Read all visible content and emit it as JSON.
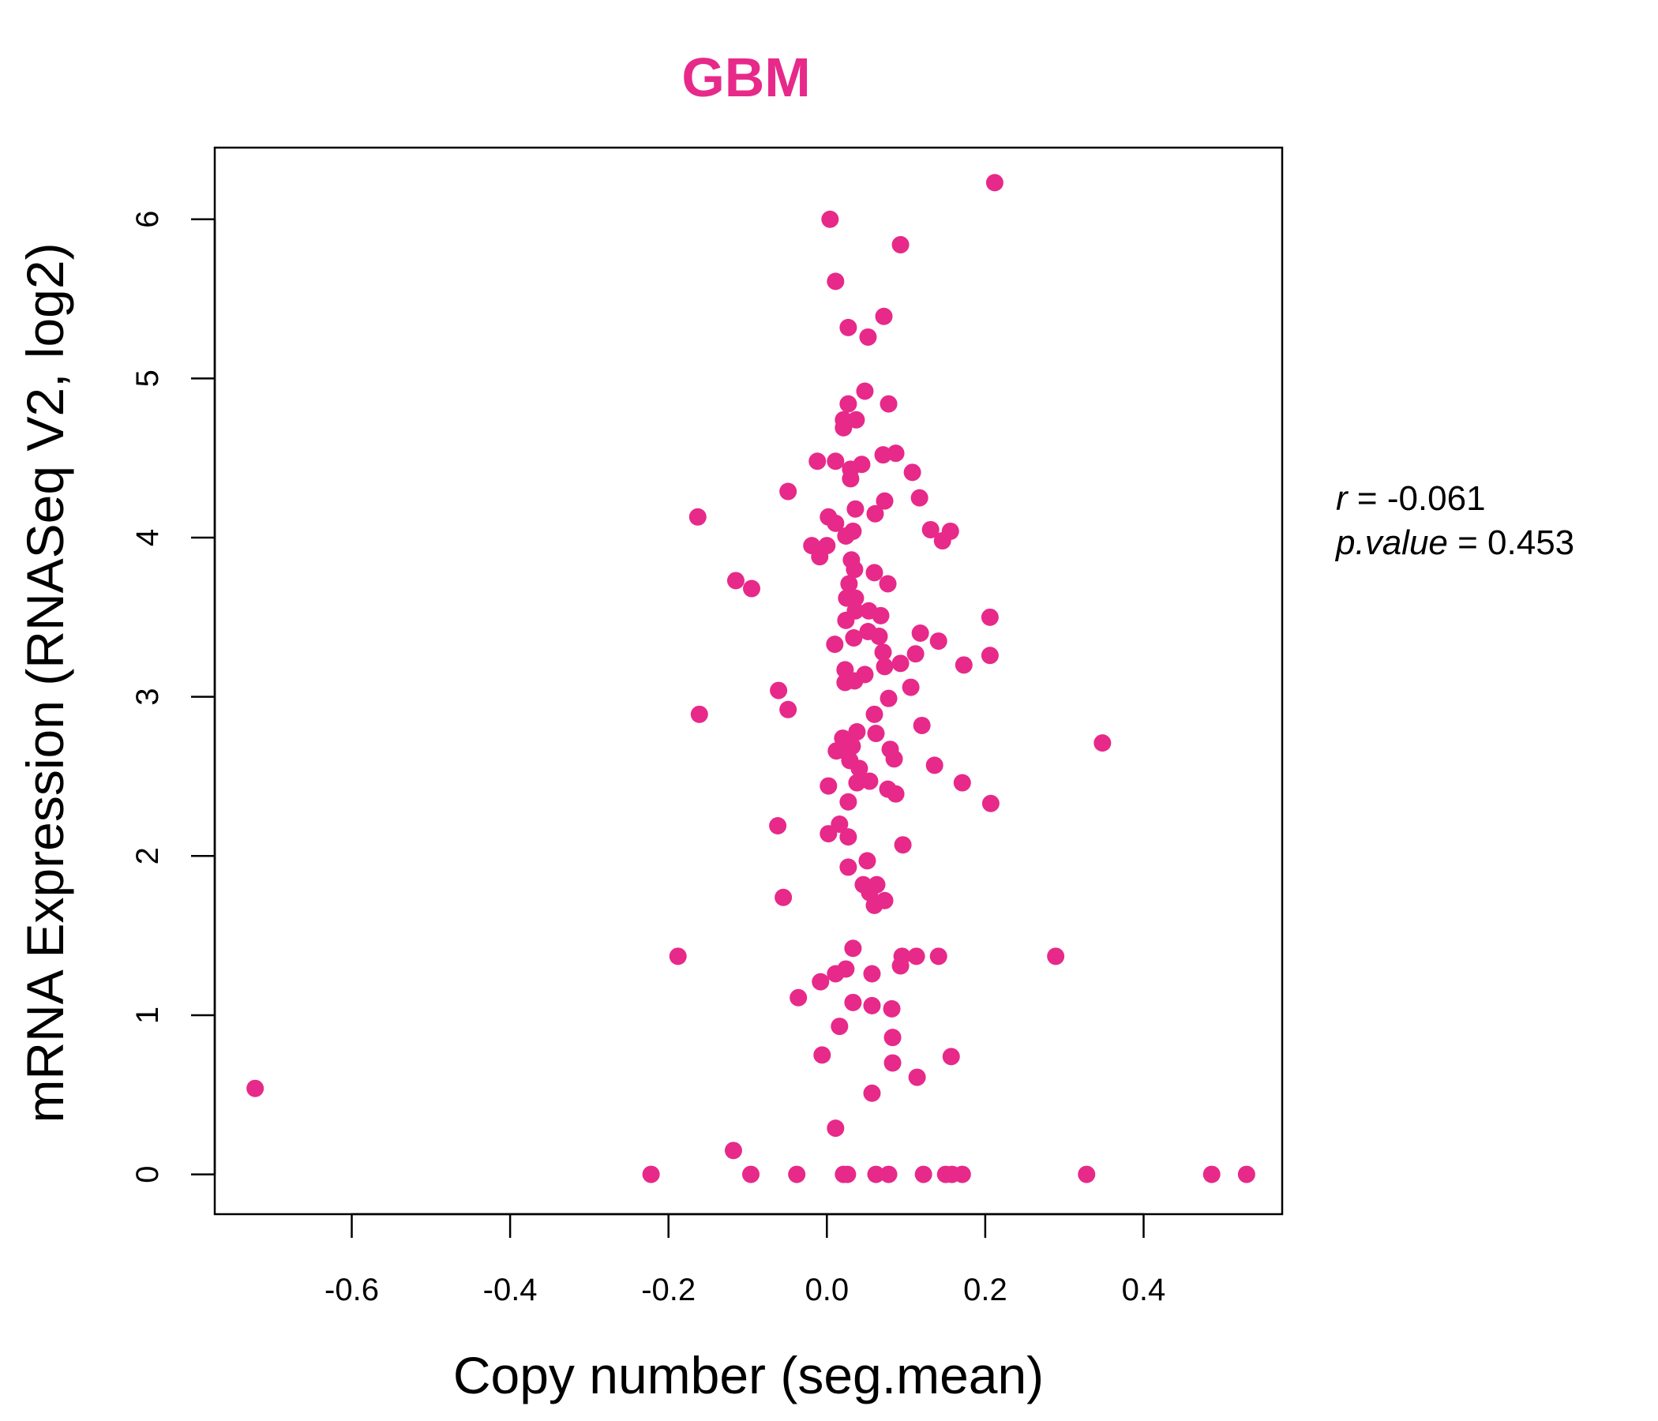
{
  "chart_data": {
    "type": "scatter",
    "title": "GBM",
    "xlabel": "Copy number (seg.mean)",
    "ylabel": "mRNA Expression (RNASeq V2, log2)",
    "xlim": [
      -0.773,
      0.575
    ],
    "ylim": [
      -0.25,
      6.45
    ],
    "x_ticks": [
      -0.6,
      -0.4,
      -0.2,
      0.0,
      0.2,
      0.4
    ],
    "x_tick_labels": [
      "-0.6",
      "-0.4",
      "-0.2",
      "0.0",
      "0.2",
      "0.4"
    ],
    "y_ticks": [
      0,
      1,
      2,
      3,
      4,
      5,
      6
    ],
    "y_tick_labels": [
      "0",
      "1",
      "2",
      "3",
      "4",
      "5",
      "6"
    ],
    "grid": false,
    "point_color": "#E7298A",
    "stats": {
      "r_label": "r",
      "r_value": "-0.061",
      "p_label": "p.value",
      "p_value": "0.453"
    },
    "points": [
      [
        0.212,
        6.23
      ],
      [
        0.004,
        6.0
      ],
      [
        0.093,
        5.84
      ],
      [
        0.011,
        5.61
      ],
      [
        0.072,
        5.39
      ],
      [
        0.027,
        5.32
      ],
      [
        0.052,
        5.26
      ],
      [
        0.048,
        4.92
      ],
      [
        0.027,
        4.84
      ],
      [
        0.078,
        4.84
      ],
      [
        0.037,
        4.74
      ],
      [
        0.021,
        4.69
      ],
      [
        0.021,
        4.74
      ],
      [
        -0.012,
        4.48
      ],
      [
        0.011,
        4.48
      ],
      [
        0.044,
        4.46
      ],
      [
        0.03,
        4.43
      ],
      [
        0.03,
        4.37
      ],
      [
        0.071,
        4.52
      ],
      [
        0.087,
        4.53
      ],
      [
        0.108,
        4.41
      ],
      [
        -0.049,
        4.29
      ],
      [
        0.117,
        4.25
      ],
      [
        0.073,
        4.23
      ],
      [
        0.036,
        4.18
      ],
      [
        0.061,
        4.15
      ],
      [
        -0.163,
        4.13
      ],
      [
        0.002,
        4.13
      ],
      [
        0.011,
        4.09
      ],
      [
        0.024,
        4.01
      ],
      [
        0.033,
        4.04
      ],
      [
        0.131,
        4.05
      ],
      [
        0.146,
        3.98
      ],
      [
        0.156,
        4.04
      ],
      [
        -0.019,
        3.95
      ],
      [
        0.0,
        3.95
      ],
      [
        -0.009,
        3.88
      ],
      [
        0.031,
        3.86
      ],
      [
        0.035,
        3.8
      ],
      [
        0.06,
        3.78
      ],
      [
        0.077,
        3.71
      ],
      [
        -0.115,
        3.73
      ],
      [
        -0.095,
        3.68
      ],
      [
        0.028,
        3.71
      ],
      [
        0.025,
        3.62
      ],
      [
        0.036,
        3.62
      ],
      [
        0.036,
        3.54
      ],
      [
        0.053,
        3.54
      ],
      [
        0.068,
        3.51
      ],
      [
        0.024,
        3.48
      ],
      [
        0.052,
        3.41
      ],
      [
        0.034,
        3.37
      ],
      [
        0.066,
        3.38
      ],
      [
        0.118,
        3.4
      ],
      [
        0.141,
        3.35
      ],
      [
        0.01,
        3.33
      ],
      [
        0.071,
        3.28
      ],
      [
        0.112,
        3.27
      ],
      [
        0.206,
        3.5
      ],
      [
        0.206,
        3.26
      ],
      [
        0.173,
        3.2
      ],
      [
        0.093,
        3.21
      ],
      [
        0.073,
        3.19
      ],
      [
        0.023,
        3.17
      ],
      [
        0.023,
        3.09
      ],
      [
        0.035,
        3.1
      ],
      [
        0.048,
        3.14
      ],
      [
        -0.061,
        3.04
      ],
      [
        -0.049,
        2.92
      ],
      [
        -0.161,
        2.89
      ],
      [
        0.106,
        3.06
      ],
      [
        0.078,
        2.99
      ],
      [
        0.06,
        2.89
      ],
      [
        0.062,
        2.77
      ],
      [
        0.038,
        2.78
      ],
      [
        0.02,
        2.74
      ],
      [
        0.12,
        2.82
      ],
      [
        0.348,
        2.71
      ],
      [
        0.012,
        2.66
      ],
      [
        0.023,
        2.66
      ],
      [
        0.032,
        2.69
      ],
      [
        0.08,
        2.67
      ],
      [
        0.085,
        2.61
      ],
      [
        0.029,
        2.6
      ],
      [
        0.041,
        2.55
      ],
      [
        0.136,
        2.57
      ],
      [
        0.038,
        2.46
      ],
      [
        0.054,
        2.47
      ],
      [
        0.002,
        2.44
      ],
      [
        0.077,
        2.42
      ],
      [
        0.087,
        2.39
      ],
      [
        0.171,
        2.46
      ],
      [
        0.027,
        2.34
      ],
      [
        0.207,
        2.33
      ],
      [
        -0.062,
        2.19
      ],
      [
        0.016,
        2.2
      ],
      [
        0.002,
        2.14
      ],
      [
        0.027,
        2.12
      ],
      [
        0.096,
        2.07
      ],
      [
        0.051,
        1.97
      ],
      [
        0.027,
        1.93
      ],
      [
        0.046,
        1.82
      ],
      [
        0.063,
        1.82
      ],
      [
        0.054,
        1.77
      ],
      [
        0.073,
        1.72
      ],
      [
        0.06,
        1.69
      ],
      [
        -0.055,
        1.74
      ],
      [
        0.033,
        1.42
      ],
      [
        -0.188,
        1.37
      ],
      [
        0.289,
        1.37
      ],
      [
        0.095,
        1.37
      ],
      [
        0.113,
        1.37
      ],
      [
        0.141,
        1.37
      ],
      [
        0.093,
        1.31
      ],
      [
        0.024,
        1.29
      ],
      [
        0.011,
        1.26
      ],
      [
        0.057,
        1.26
      ],
      [
        -0.008,
        1.21
      ],
      [
        -0.036,
        1.11
      ],
      [
        0.033,
        1.08
      ],
      [
        0.057,
        1.06
      ],
      [
        0.082,
        1.04
      ],
      [
        0.016,
        0.93
      ],
      [
        0.083,
        0.86
      ],
      [
        -0.006,
        0.75
      ],
      [
        0.157,
        0.74
      ],
      [
        0.083,
        0.7
      ],
      [
        0.114,
        0.61
      ],
      [
        0.057,
        0.51
      ],
      [
        -0.722,
        0.54
      ],
      [
        0.011,
        0.29
      ],
      [
        -0.118,
        0.15
      ],
      [
        -0.222,
        0.0
      ],
      [
        -0.096,
        0.0
      ],
      [
        -0.038,
        0.0
      ],
      [
        0.021,
        0.0
      ],
      [
        0.026,
        0.0
      ],
      [
        0.062,
        0.0
      ],
      [
        0.078,
        0.0
      ],
      [
        0.122,
        0.0
      ],
      [
        0.15,
        0.0
      ],
      [
        0.158,
        0.0
      ],
      [
        0.171,
        0.0
      ],
      [
        0.328,
        0.0
      ],
      [
        0.486,
        0.0
      ],
      [
        0.53,
        0.0
      ]
    ]
  }
}
